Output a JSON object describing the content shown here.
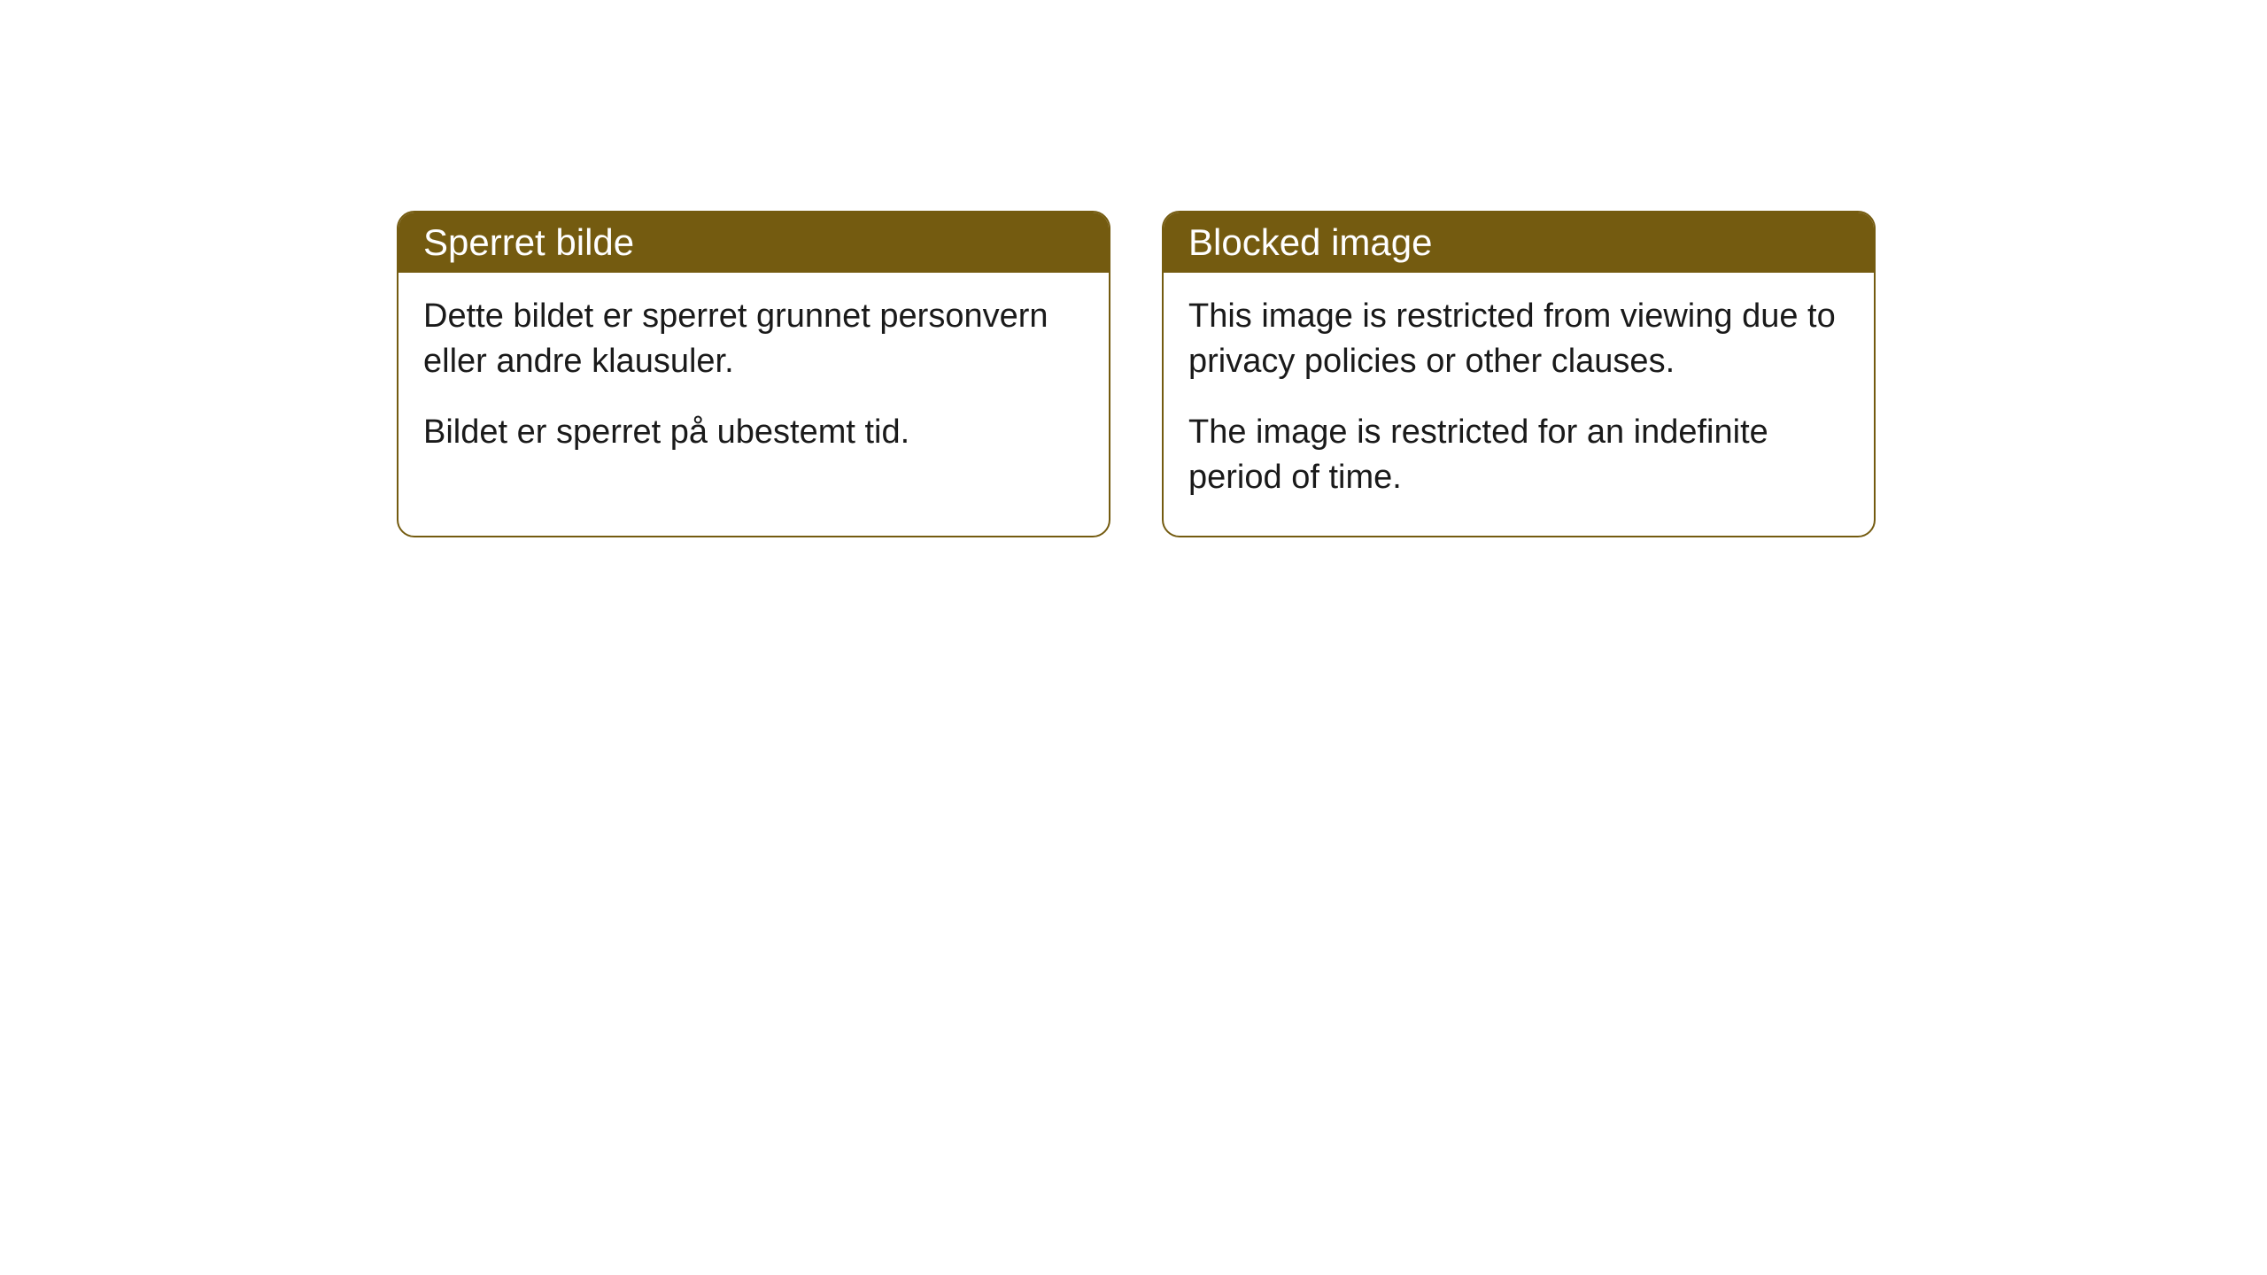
{
  "cards": [
    {
      "title": "Sperret bilde",
      "paragraph1": "Dette bildet er sperret grunnet personvern eller andre klausuler.",
      "paragraph2": "Bildet er sperret på ubestemt tid."
    },
    {
      "title": "Blocked image",
      "paragraph1": "This image is restricted from viewing due to privacy policies or other clauses.",
      "paragraph2": "The image is restricted for an indefinite period of time."
    }
  ],
  "styling": {
    "header_background": "#745b10",
    "header_text_color": "#ffffff",
    "border_color": "#745b10",
    "body_background": "#ffffff",
    "body_text_color": "#1a1a1a",
    "border_radius": 20,
    "title_fontsize": 42,
    "body_fontsize": 38
  }
}
